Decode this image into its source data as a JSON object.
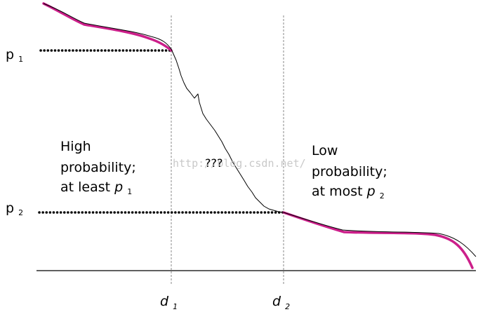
{
  "labels": {
    "p1": {
      "base": "p",
      "sub": "1"
    },
    "p2": {
      "base": "p",
      "sub": "2"
    },
    "d1": {
      "base": "d",
      "sub": "1"
    },
    "d2": {
      "base": "d",
      "sub": "2"
    },
    "middle": "???",
    "high_region": {
      "line1": "High",
      "line2": "probability;",
      "line3_prefix": "at least ",
      "line3_var": "p",
      "line3_sub": "1"
    },
    "low_region": {
      "line1": "Low",
      "line2": "probability;",
      "line3_prefix": "at most ",
      "line3_var": "p",
      "line3_sub": "2"
    }
  },
  "watermark": "http://blog.csdn.net/",
  "colors": {
    "ideal_curve": "#cc1f8a",
    "actual_curve": "#000000",
    "dotted_line": "#000000",
    "vertical_guides": "#888888",
    "axis": "#000000",
    "watermark": "#c9c9c9"
  }
}
